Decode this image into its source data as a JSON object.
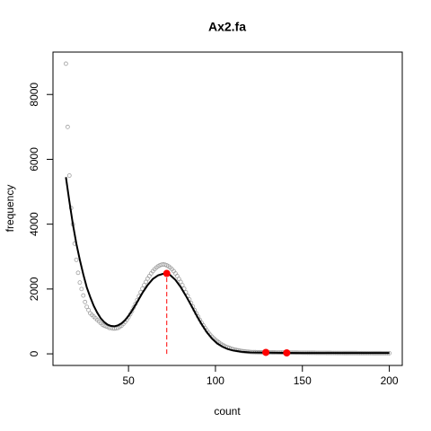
{
  "chart_data": {
    "type": "scatter",
    "title": "Ax2.fa",
    "x_label": "count",
    "y_label": "frequency",
    "xlim": [
      6.56,
      207.44
    ],
    "ylim": [
      -358,
      9308
    ],
    "xticks": [
      50,
      100,
      150,
      200
    ],
    "yticks": [
      0,
      2000,
      4000,
      6000,
      8000
    ],
    "series": [
      {
        "style": "points",
        "color": "#a0a0a0",
        "x": [
          14,
          15,
          16,
          17,
          18,
          19,
          20,
          21,
          22,
          23,
          24,
          25,
          26,
          27,
          28,
          29,
          30,
          31,
          32,
          33,
          34,
          35,
          36,
          37,
          38,
          39,
          40,
          41,
          42,
          43,
          44,
          45,
          46,
          47,
          48,
          49,
          50,
          51,
          52,
          53,
          54,
          55,
          56,
          57,
          58,
          59,
          60,
          61,
          62,
          63,
          64,
          65,
          66,
          67,
          68,
          69,
          70,
          71,
          72,
          73,
          74,
          75,
          76,
          77,
          78,
          79,
          80,
          81,
          82,
          83,
          84,
          85,
          86,
          87,
          88,
          89,
          90,
          91,
          92,
          93,
          94,
          95,
          96,
          97,
          98,
          99,
          100,
          101,
          102,
          103,
          104,
          105,
          106,
          107,
          108,
          109,
          110,
          111,
          112,
          113,
          114,
          115,
          116,
          117,
          118,
          119,
          120,
          121,
          122,
          123,
          124,
          125,
          126,
          127,
          128,
          129,
          130,
          131,
          132,
          133,
          134,
          135,
          136,
          137,
          138,
          139,
          140,
          141,
          142,
          143,
          144,
          145,
          146,
          147,
          148,
          149,
          150,
          151,
          152,
          153,
          154,
          155,
          156,
          157,
          158,
          159,
          160,
          161,
          162,
          163,
          164,
          165,
          166,
          167,
          168,
          169,
          170,
          171,
          172,
          173,
          174,
          175,
          176,
          177,
          178,
          179,
          180,
          181,
          182,
          183,
          184,
          185,
          186,
          187,
          188,
          189,
          190,
          191,
          192,
          193,
          194,
          195,
          196,
          197,
          198,
          199,
          200
        ],
        "values": [
          8950,
          7000,
          5500,
          4500,
          4000,
          3400,
          2900,
          2500,
          2200,
          2000,
          1800,
          1600,
          1450,
          1350,
          1250,
          1200,
          1150,
          1100,
          1050,
          1000,
          950,
          900,
          870,
          850,
          830,
          800,
          800,
          780,
          780,
          790,
          800,
          830,
          870,
          920,
          980,
          1050,
          1130,
          1220,
          1320,
          1430,
          1540,
          1660,
          1780,
          1900,
          2010,
          2120,
          2220,
          2320,
          2400,
          2480,
          2550,
          2610,
          2660,
          2700,
          2730,
          2750,
          2760,
          2750,
          2730,
          2700,
          2660,
          2610,
          2550,
          2480,
          2400,
          2310,
          2220,
          2120,
          2010,
          1900,
          1790,
          1680,
          1570,
          1460,
          1350,
          1250,
          1150,
          1050,
          960,
          880,
          800,
          720,
          650,
          590,
          530,
          480,
          430,
          390,
          350,
          310,
          280,
          250,
          220,
          200,
          180,
          160,
          145,
          130,
          118,
          107,
          97,
          88,
          80,
          73,
          67,
          62,
          58,
          55,
          53,
          52,
          50,
          49,
          48,
          47,
          46,
          45,
          45,
          44,
          43,
          42,
          42,
          41,
          40,
          40,
          39,
          39,
          38,
          38,
          37,
          37,
          36,
          36,
          35,
          35,
          34,
          34,
          33,
          33,
          33,
          32,
          32,
          31,
          31,
          31,
          30,
          30,
          30,
          29,
          29,
          29,
          28,
          28,
          28,
          27,
          27,
          27,
          26,
          26,
          26,
          26,
          25,
          25,
          25,
          25,
          24,
          24,
          24,
          24,
          23,
          23,
          23,
          23,
          22,
          22,
          22,
          22,
          22,
          21,
          21,
          21,
          21,
          21,
          20,
          20,
          20,
          20,
          20
        ]
      },
      {
        "style": "line",
        "color": "#000000",
        "x": [
          14,
          16,
          18,
          20,
          22,
          24,
          26,
          28,
          30,
          32,
          34,
          36,
          38,
          40,
          42,
          44,
          46,
          48,
          50,
          52,
          55,
          58,
          61,
          64,
          67,
          70,
          72,
          74,
          77,
          80,
          83,
          86,
          89,
          92,
          95,
          98,
          101,
          104,
          107,
          110,
          115,
          120,
          130,
          140,
          150,
          160,
          170,
          180,
          190,
          200
        ],
        "values": [
          5450,
          4700,
          4000,
          3400,
          2900,
          2450,
          2050,
          1750,
          1480,
          1270,
          1100,
          980,
          900,
          860,
          850,
          880,
          940,
          1040,
          1170,
          1330,
          1600,
          1880,
          2120,
          2310,
          2420,
          2470,
          2480,
          2430,
          2280,
          2060,
          1790,
          1500,
          1200,
          920,
          670,
          470,
          320,
          220,
          150,
          105,
          65,
          45,
          35,
          30,
          28,
          27,
          26,
          25,
          25,
          25
        ]
      },
      {
        "style": "peaks",
        "color": "#ff0000",
        "x": [
          72,
          129,
          141
        ],
        "values": [
          2480,
          45,
          30
        ]
      }
    ]
  }
}
